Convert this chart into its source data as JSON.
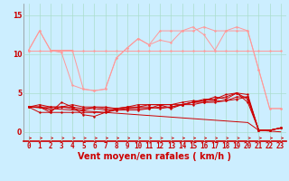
{
  "x": [
    0,
    1,
    2,
    3,
    4,
    5,
    6,
    7,
    8,
    9,
    10,
    11,
    12,
    13,
    14,
    15,
    16,
    17,
    18,
    19,
    20,
    21,
    22,
    23
  ],
  "background_color": "#cceeff",
  "grid_color": "#aaddcc",
  "xlabel": "Vent moyen/en rafales ( km/h )",
  "xlabel_color": "#cc0000",
  "xlabel_fontsize": 7,
  "yticks": [
    0,
    5,
    10,
    15
  ],
  "ylim": [
    -1.2,
    16.5
  ],
  "xlim": [
    -0.5,
    23.5
  ],
  "line_light_1": [
    10.5,
    10.5,
    10.5,
    10.5,
    10.5,
    10.5,
    10.5,
    10.5,
    10.5,
    10.5,
    10.5,
    10.5,
    10.5,
    10.5,
    10.5,
    10.5,
    10.5,
    10.5,
    10.5,
    10.5,
    10.5,
    10.5,
    10.5,
    10.5
  ],
  "line_light_2": [
    10.5,
    13,
    10.5,
    10.5,
    10.5,
    5.5,
    5.3,
    5.5,
    9.5,
    10.8,
    12,
    11.2,
    13,
    13,
    13,
    13,
    13.5,
    13,
    13,
    13,
    13,
    8,
    3,
    3
  ],
  "line_light_3": [
    10.5,
    13,
    10.5,
    10.2,
    6.0,
    5.5,
    5.3,
    5.5,
    9.5,
    10.8,
    12,
    11.2,
    11.8,
    11.5,
    13,
    13.5,
    12.5,
    10.5,
    13,
    13.5,
    13,
    8,
    3,
    3
  ],
  "line_dark_1": [
    3.2,
    3.2,
    2.5,
    3.8,
    3.2,
    2.2,
    2.0,
    2.5,
    3.0,
    3.0,
    3.0,
    3.0,
    3.5,
    3.0,
    3.5,
    3.8,
    4.2,
    4.2,
    4.8,
    5.0,
    3.8,
    0.2,
    0.2,
    0.5
  ],
  "line_dark_2": [
    3.2,
    3.2,
    2.8,
    3.2,
    3.0,
    2.8,
    3.2,
    3.2,
    3.0,
    3.2,
    3.2,
    3.2,
    3.0,
    3.2,
    3.5,
    3.8,
    4.0,
    4.5,
    4.2,
    5.0,
    4.2,
    0.2,
    0.2,
    0.5
  ],
  "line_dark_3": [
    3.2,
    2.5,
    2.5,
    2.5,
    2.5,
    2.5,
    2.5,
    2.5,
    2.8,
    2.8,
    2.8,
    3.0,
    3.2,
    3.2,
    3.5,
    3.8,
    3.8,
    4.0,
    4.0,
    4.2,
    4.5,
    0.2,
    0.2,
    0.5
  ],
  "line_dark_4": [
    3.2,
    3.5,
    3.2,
    3.2,
    3.2,
    3.0,
    3.0,
    2.8,
    2.8,
    3.0,
    3.2,
    3.5,
    3.5,
    3.5,
    3.5,
    3.5,
    3.8,
    3.8,
    4.0,
    4.5,
    4.5,
    0.2,
    0.2,
    0.5
  ],
  "line_dark_5": [
    3.2,
    3.2,
    3.2,
    3.2,
    3.5,
    3.2,
    3.2,
    3.0,
    3.0,
    3.2,
    3.5,
    3.5,
    3.5,
    3.5,
    3.8,
    4.0,
    4.0,
    4.2,
    4.5,
    5.0,
    4.8,
    0.2,
    0.2,
    0.5
  ],
  "line_decreasing": [
    3.2,
    3.1,
    3.0,
    2.9,
    2.8,
    2.7,
    2.6,
    2.5,
    2.4,
    2.3,
    2.2,
    2.1,
    2.0,
    1.9,
    1.8,
    1.7,
    1.6,
    1.5,
    1.4,
    1.3,
    1.2,
    0.2,
    0.1,
    0.0
  ],
  "tick_color": "#cc0000",
  "tick_fontsize": 5.5,
  "light_color": "#ff9999",
  "dark_color": "#cc0000",
  "marker_size": 2.0,
  "linewidth": 0.7
}
